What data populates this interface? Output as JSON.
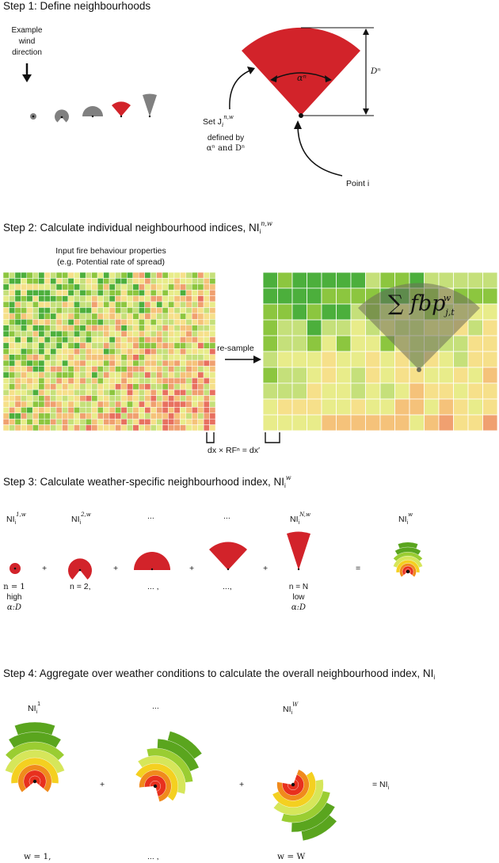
{
  "step1": {
    "title": "Step 1: Define neighbourhoods",
    "example_wind": [
      "Example",
      "wind",
      "direction"
    ],
    "alpha_label": "αⁿ",
    "d_label": "Dⁿ",
    "set_label": "Set J",
    "set_sub": "i",
    "set_sup": "n,w",
    "defined_by": "defined by",
    "defined_by_vars": "αⁿ and Dⁿ",
    "point_label": "Point i"
  },
  "step2": {
    "title": "Step 2: Calculate individual neighbourhood indices, NI",
    "title_sub": "i",
    "title_sup": "n,w",
    "input_caption_1": "Input fire behaviour properties",
    "input_caption_2": "(e.g. Potential rate of spread)",
    "resample_label": "re-sample",
    "sum_formula": "∑ fbp",
    "sum_sub": "j,t",
    "sum_sup": "w",
    "scale_label": "dx × RFⁿ = dx′",
    "colors": [
      "#4caf3c",
      "#8cc63f",
      "#c5e07a",
      "#e8ec8a",
      "#f6e08a",
      "#f5c27a",
      "#f0a070",
      "#e87060"
    ]
  },
  "step3": {
    "title": "Step 3: Calculate weather-specific neighbourhood index, NI",
    "title_sub": "i",
    "title_sup": "w",
    "headers": [
      {
        "base": "NI",
        "sub": "i",
        "sup": "1,w"
      },
      {
        "base": "NI",
        "sub": "i",
        "sup": "2,w"
      },
      {
        "base": "...",
        "sub": "",
        "sup": ""
      },
      {
        "base": "...",
        "sub": "",
        "sup": ""
      },
      {
        "base": "NI",
        "sub": "i",
        "sup": "N,w"
      },
      {
        "base": "NI",
        "sub": "i",
        "sup": "w"
      }
    ],
    "ops": [
      "+",
      "+",
      "+",
      "+",
      "="
    ],
    "caption_n1": [
      "n = 1",
      "high",
      "α:D"
    ],
    "caption_n2": "n = 2,",
    "caption_dots1": "... ,",
    "caption_dots2": "...,",
    "caption_nN": [
      "n = N",
      "low",
      "α:D"
    ]
  },
  "step4": {
    "title": "Step 4: Aggregate over weather conditions to calculate the overall neighbourhood index, NI",
    "title_sub": "i",
    "headers": [
      {
        "base": "NI",
        "sub": "i",
        "sup": "1"
      },
      {
        "base": "...",
        "sub": "",
        "sup": ""
      },
      {
        "base": "NI",
        "sub": "i",
        "sup": "W"
      }
    ],
    "ops": [
      "+",
      "+"
    ],
    "result": "= NI",
    "result_sub": "i",
    "captions": [
      "w = 1,",
      "... ,",
      "w = W"
    ]
  },
  "palette": {
    "sector_red": "#d2232a",
    "sector_grey": "#808080",
    "ring_colors": [
      "#5aa51e",
      "#9acd32",
      "#d6e65a",
      "#f4d020",
      "#f08a1c",
      "#e8301e"
    ]
  }
}
